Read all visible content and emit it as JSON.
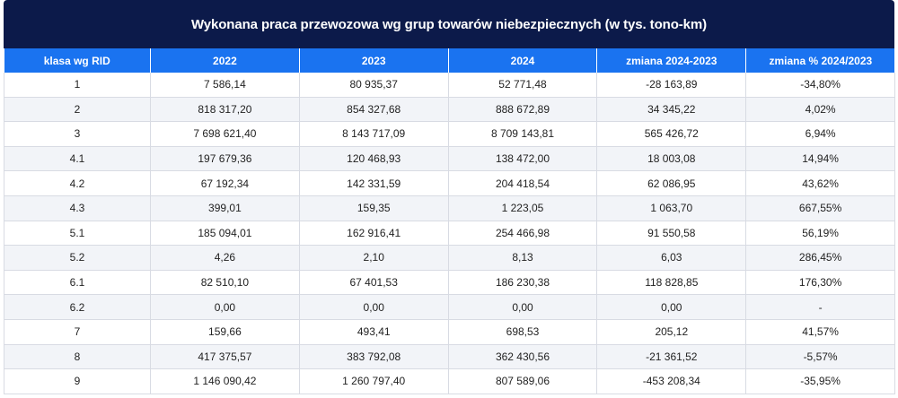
{
  "title": "Wykonana praca przewozowa wg grup towarów niebezpiecznych (w tys. tono-km)",
  "headers": [
    "klasa wg RID",
    "2022",
    "2023",
    "2024",
    "zmiana 2024-2023",
    "zmiana % 2024/2023"
  ],
  "rows": [
    [
      "1",
      "7 586,14",
      "80 935,37",
      "52 771,48",
      "-28 163,89",
      "-34,80%"
    ],
    [
      "2",
      "818 317,20",
      "854 327,68",
      "888 672,89",
      "34 345,22",
      "4,02%"
    ],
    [
      "3",
      "7 698 621,40",
      "8 143 717,09",
      "8 709 143,81",
      "565 426,72",
      "6,94%"
    ],
    [
      "4.1",
      "197 679,36",
      "120 468,93",
      "138 472,00",
      "18 003,08",
      "14,94%"
    ],
    [
      "4.2",
      "67 192,34",
      "142 331,59",
      "204 418,54",
      "62 086,95",
      "43,62%"
    ],
    [
      "4.3",
      "399,01",
      "159,35",
      "1 223,05",
      "1 063,70",
      "667,55%"
    ],
    [
      "5.1",
      "185 094,01",
      "162 916,41",
      "254 466,98",
      "91 550,58",
      "56,19%"
    ],
    [
      "5.2",
      "4,26",
      "2,10",
      "8,13",
      "6,03",
      "286,45%"
    ],
    [
      "6.1",
      "82 510,10",
      "67 401,53",
      "186 230,38",
      "118 828,85",
      "176,30%"
    ],
    [
      "6.2",
      "0,00",
      "0,00",
      "0,00",
      "0,00",
      "-"
    ],
    [
      "7",
      "159,66",
      "493,41",
      "698,53",
      "205,12",
      "41,57%"
    ],
    [
      "8",
      "417 375,57",
      "383 792,08",
      "362 430,56",
      "-21 361,52",
      "-5,57%"
    ],
    [
      "9",
      "1 146 090,42",
      "1 260 797,40",
      "807 589,06",
      "-453 208,34",
      "-35,95%"
    ]
  ],
  "colors": {
    "title_bg": "#0c1a4a",
    "header_bg": "#1a73f0",
    "row_alt_bg": "#f2f4f8"
  }
}
